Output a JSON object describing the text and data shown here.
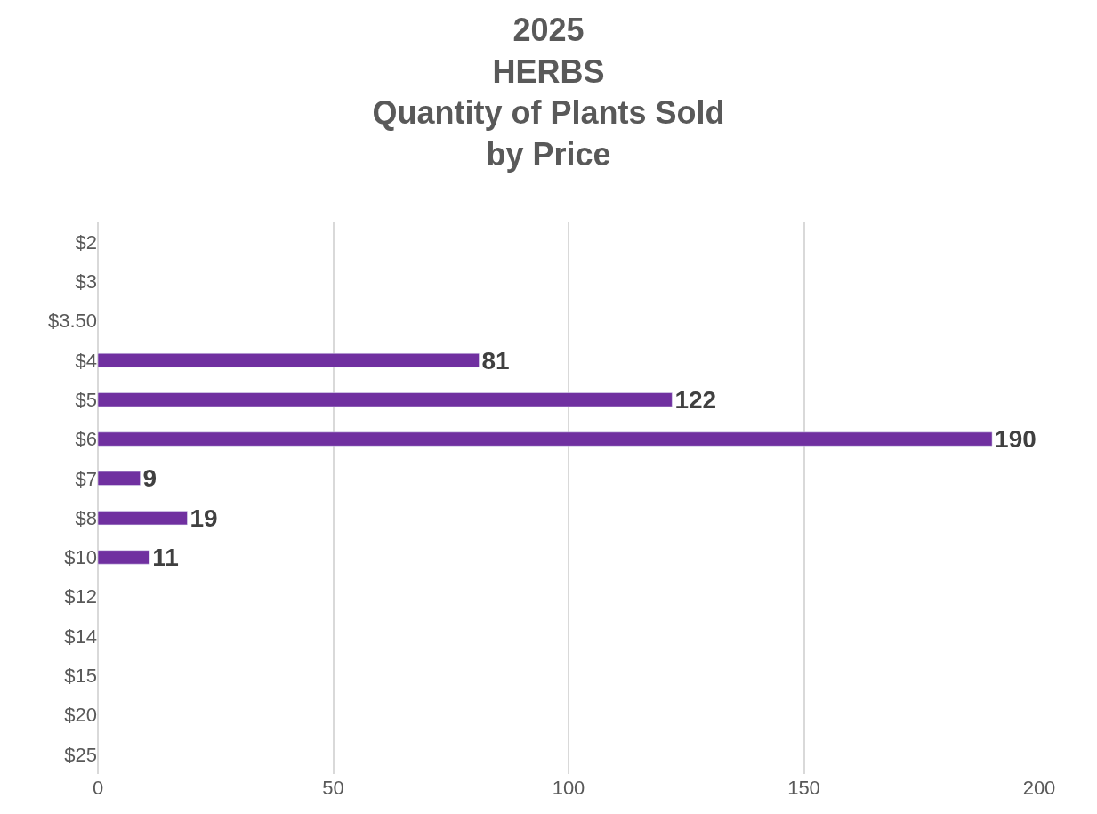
{
  "chart_data": {
    "type": "bar",
    "orientation": "horizontal",
    "title": "2025\nHERBS\nQuantity of Plants Sold\nby Price",
    "categories": [
      "$2",
      "$3",
      "$3.50",
      "$4",
      "$5",
      "$6",
      "$7",
      "$8",
      "$10",
      "$12",
      "$14",
      "$15",
      "$20",
      "$25"
    ],
    "values": [
      null,
      null,
      null,
      81,
      122,
      190,
      9,
      19,
      11,
      null,
      null,
      null,
      null,
      null
    ],
    "color": "#7030a0",
    "xlim": [
      0,
      200
    ],
    "xticks": [
      0,
      50,
      100,
      150,
      200
    ],
    "grid": "x",
    "data_labels": true
  }
}
